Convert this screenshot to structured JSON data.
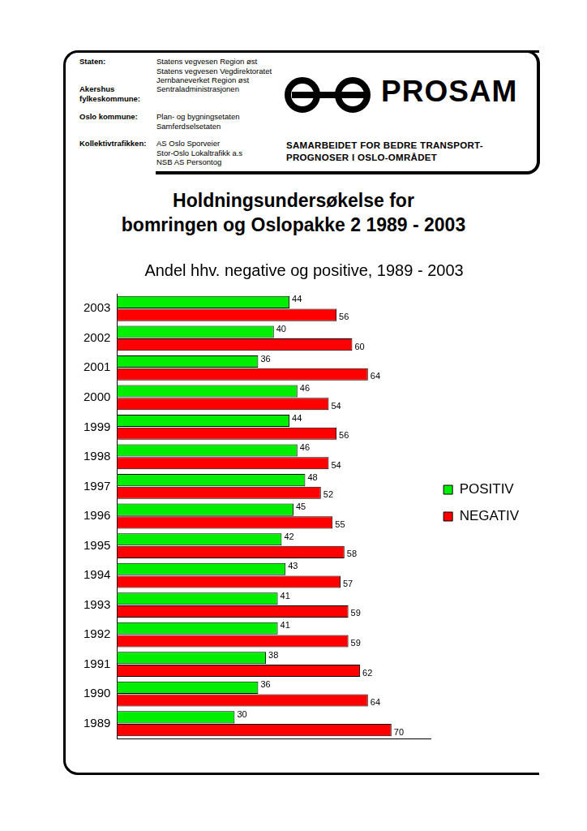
{
  "header": {
    "entries": [
      {
        "label": "Staten:",
        "lines": [
          "Statens vegvesen Region øst",
          "Statens vegvesen Vegdirektoratet",
          "Jernbaneverket Region øst"
        ]
      },
      {
        "label": "Akershus fylkeskommune:",
        "lines": [
          "Sentraladministrasjonen"
        ]
      },
      {
        "label": "Oslo kommune:",
        "lines": [
          "Plan- og bygningsetaten",
          "Samferdselsetaten"
        ]
      },
      {
        "label": "Kollektivtrafikken:",
        "lines": [
          "AS Oslo Sporveier",
          "Stor-Oslo Lokaltrafikk a.s",
          "NSB AS Persontog"
        ]
      }
    ],
    "logo": "PROSAM",
    "tagline": [
      "SAMARBEIDET FOR BEDRE TRANSPORT-",
      "PROGNOSER I OSLO-OMRÅDET"
    ]
  },
  "title": [
    "Holdningsundersøkelse for",
    "bomringen og Oslopakke 2 1989 - 2003"
  ],
  "chart_data": {
    "type": "bar",
    "orientation": "horizontal",
    "title": "Andel hhv. negative og positive, 1989 - 2003",
    "categories": [
      "2003",
      "2002",
      "2001",
      "2000",
      "1999",
      "1998",
      "1997",
      "1996",
      "1995",
      "1994",
      "1993",
      "1992",
      "1991",
      "1990",
      "1989"
    ],
    "series": [
      {
        "name": "POSITIV",
        "color": "#00ee00",
        "values": [
          44,
          40,
          36,
          46,
          44,
          46,
          48,
          45,
          42,
          43,
          41,
          41,
          38,
          36,
          30
        ]
      },
      {
        "name": "NEGATIV",
        "color": "#ff0000",
        "values": [
          56,
          60,
          64,
          54,
          56,
          54,
          52,
          55,
          58,
          57,
          59,
          59,
          62,
          64,
          70
        ]
      }
    ],
    "xlim": [
      0,
      80
    ],
    "tick_labels": "y",
    "grid": false,
    "legend": "right",
    "data_labels": true
  }
}
